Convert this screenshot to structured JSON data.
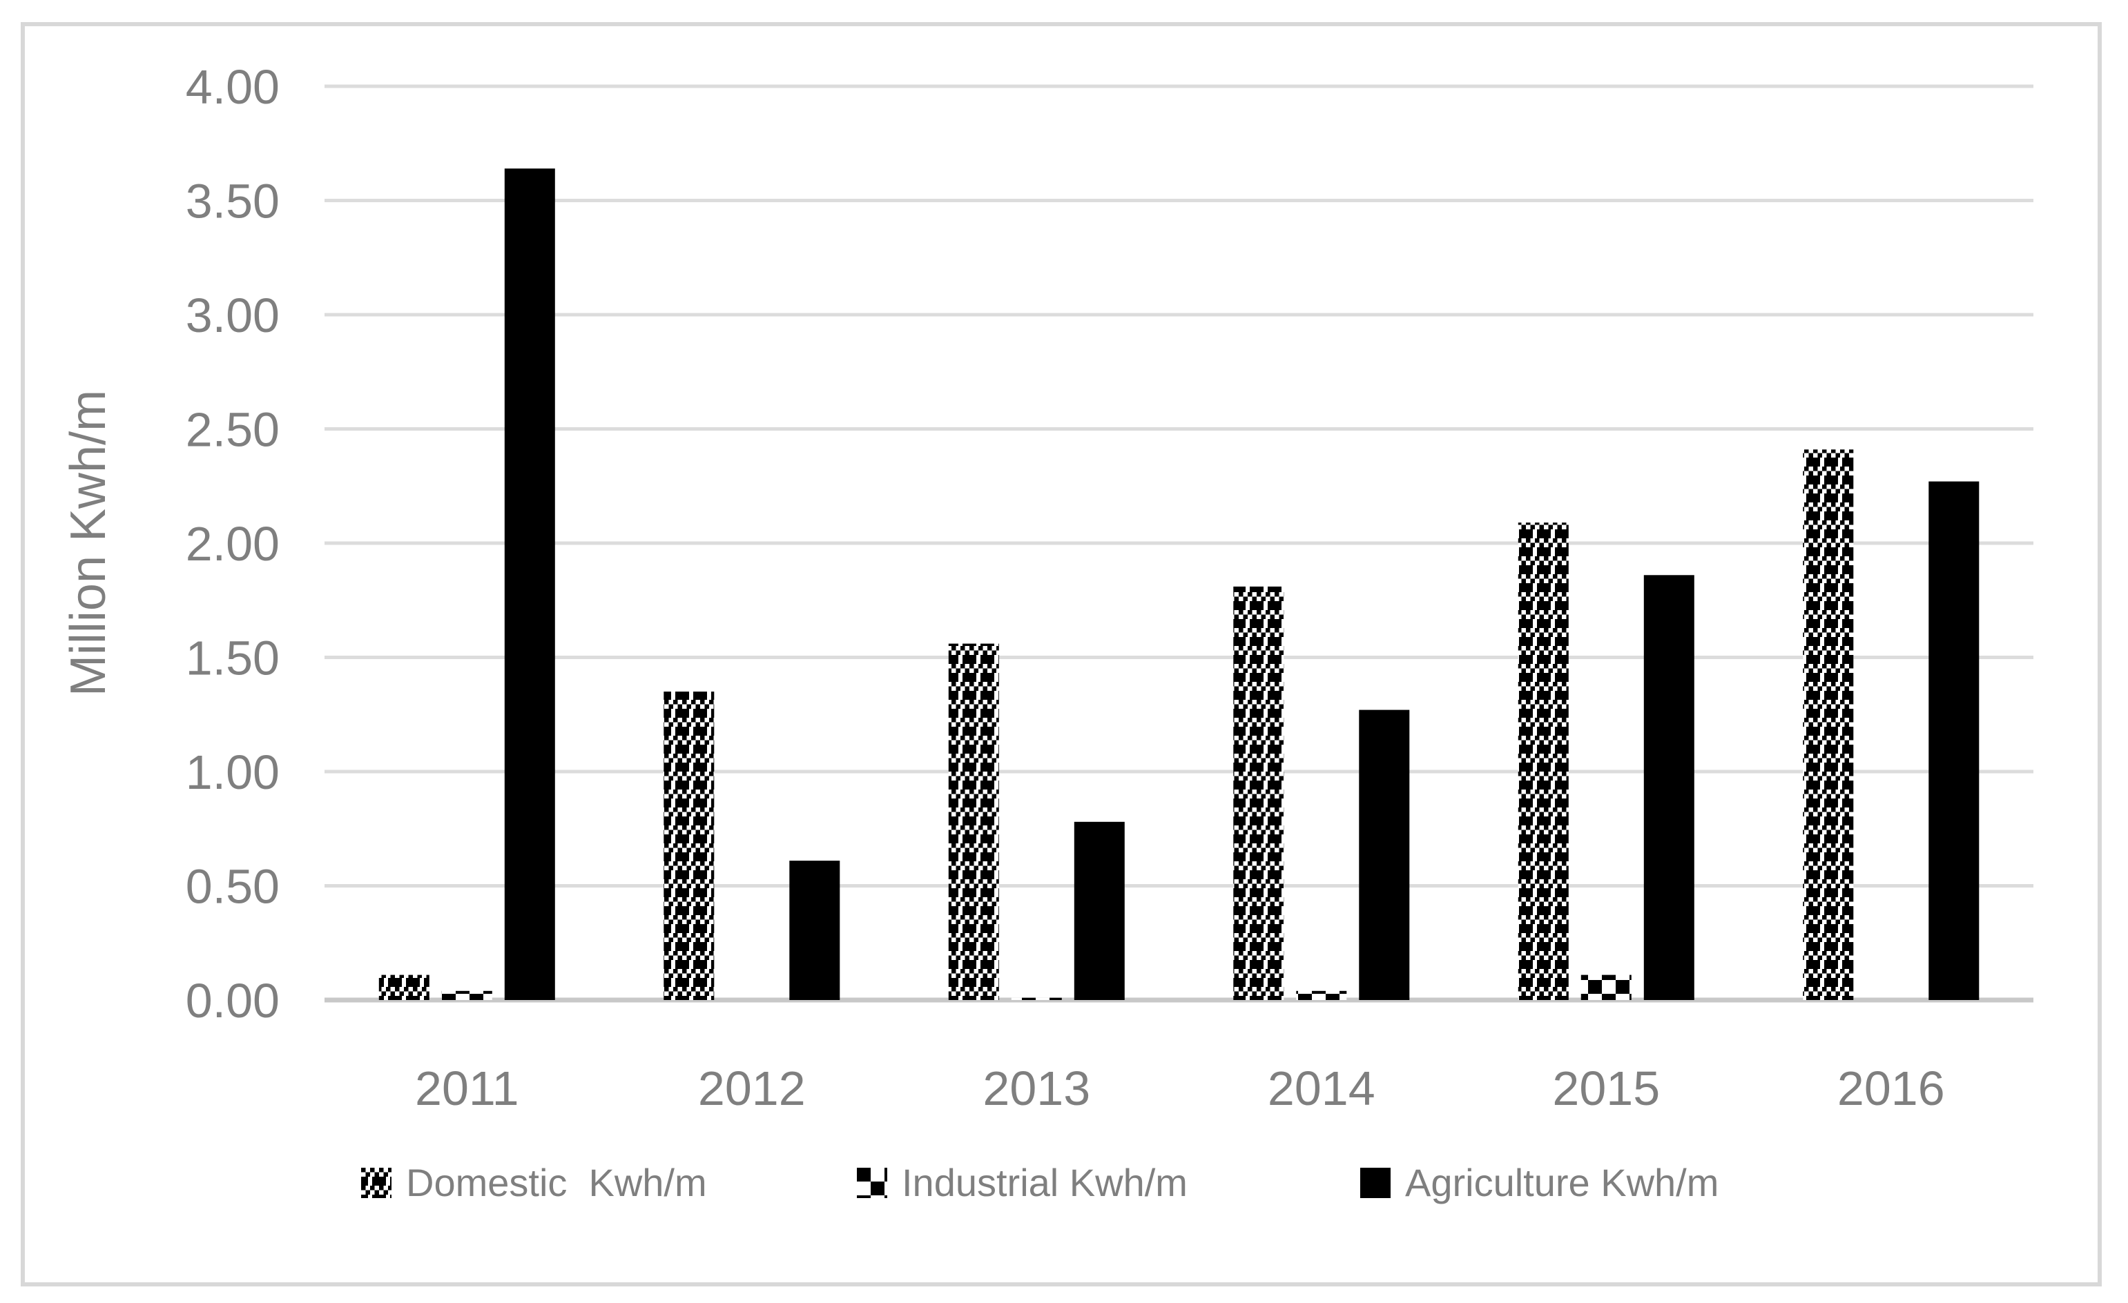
{
  "chart_data": {
    "type": "bar",
    "title": "",
    "xlabel": "",
    "ylabel": "Million Kwh/m",
    "categories": [
      "2011",
      "2012",
      "2013",
      "2014",
      "2015",
      "2016"
    ],
    "series": [
      {
        "name": "Domestic  Kwh/m",
        "pattern": "checker-fine",
        "values": [
          0.11,
          1.35,
          1.56,
          1.81,
          2.09,
          2.41
        ]
      },
      {
        "name": "Industrial Kwh/m",
        "pattern": "checker-large",
        "values": [
          0.04,
          0.0,
          0.01,
          0.04,
          0.11,
          0.0
        ]
      },
      {
        "name": "Agriculture Kwh/m",
        "pattern": "solid",
        "values": [
          3.64,
          0.61,
          0.78,
          1.27,
          1.86,
          2.27
        ]
      }
    ],
    "ylim": [
      0,
      4
    ],
    "ytick_step": 0.5,
    "ytick_labels": [
      "0.00",
      "0.50",
      "1.00",
      "1.50",
      "2.00",
      "2.50",
      "3.00",
      "3.50",
      "4.00"
    ],
    "grid": true,
    "legend_position": "bottom"
  },
  "colors": {
    "background": "#ffffff",
    "text": "#7f7f7f",
    "gridline": "#dcdcdc",
    "axis_line": "#c8c8c8",
    "frame_border": "#d8d8d8",
    "bar_fill": "#000000"
  }
}
